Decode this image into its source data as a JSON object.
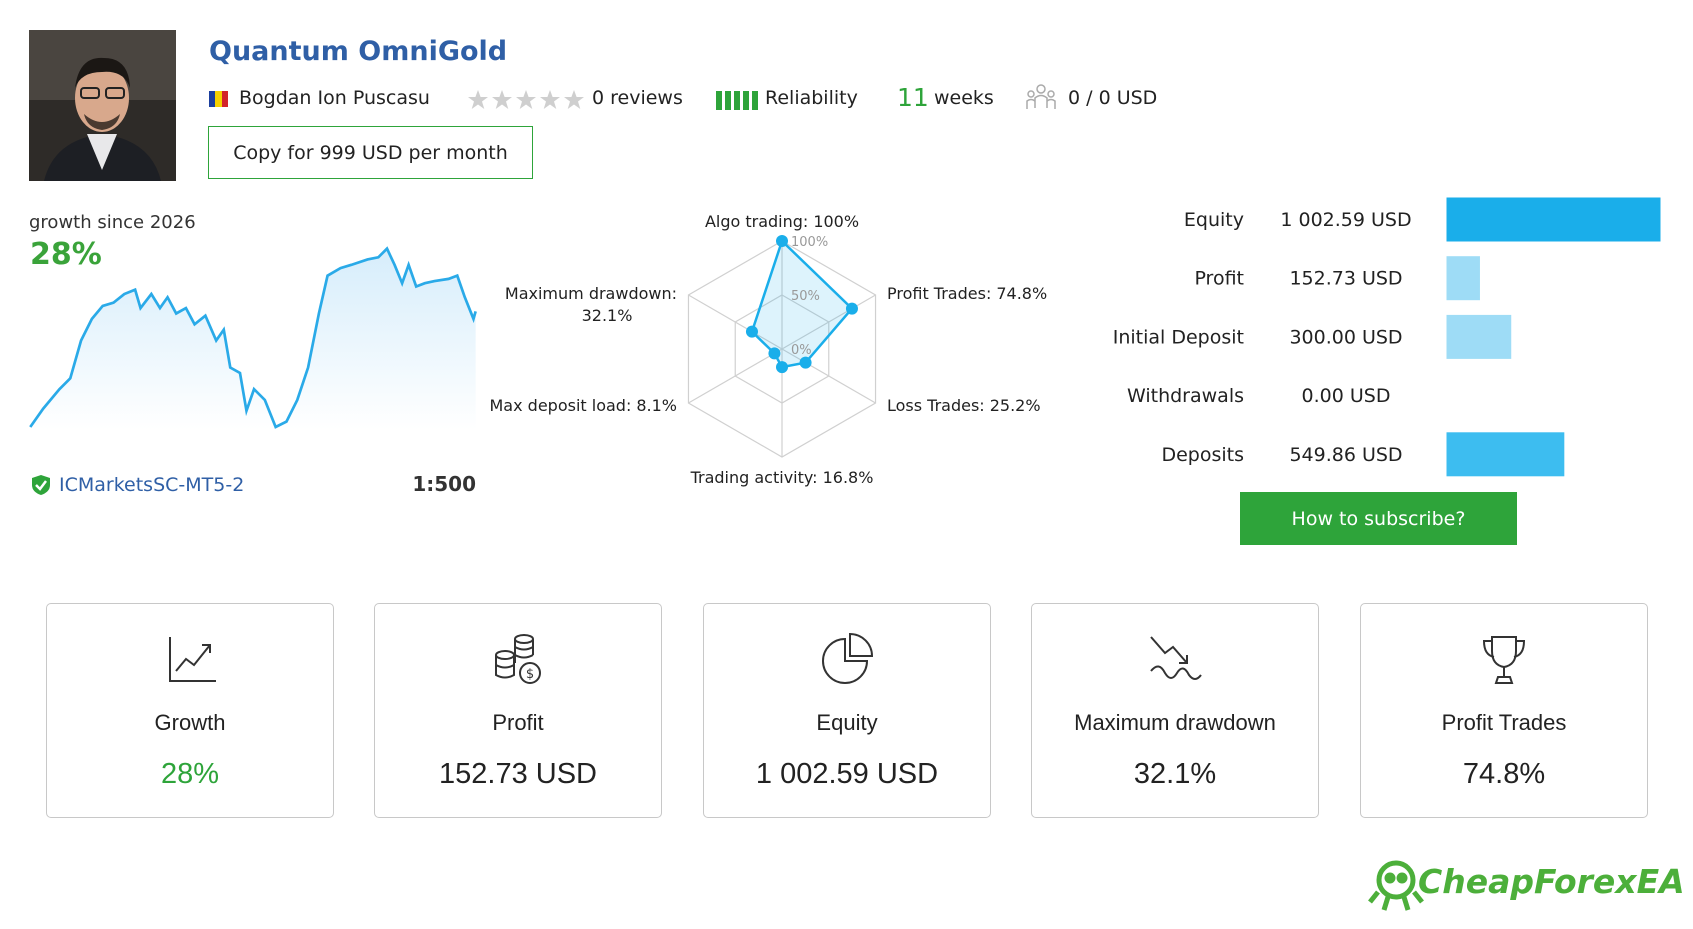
{
  "header": {
    "title": "Quantum OmniGold",
    "author": "Bogdan Ion Puscasu",
    "reviews": "0 reviews",
    "reliability": "Reliability",
    "weeks_count": "11",
    "weeks_unit": "weeks",
    "subscribers": "0 / 0 USD",
    "copy_button": "Copy for 999 USD per month"
  },
  "growth": {
    "caption": "growth since 2026",
    "value": "28%",
    "broker": "ICMarketsSC-MT5-2",
    "leverage": "1:500"
  },
  "radar": {
    "rlim": [
      0,
      100
    ],
    "ticks": [
      {
        "value": 100,
        "label": "100%"
      },
      {
        "value": 50,
        "label": "50%"
      },
      {
        "value": 0,
        "label": "0%"
      }
    ],
    "color": "#1aaeea",
    "axes": [
      {
        "name": "Algo trading:",
        "value": 100,
        "value_label": "100%"
      },
      {
        "name": "Profit Trades:",
        "value": 74.8,
        "value_label": "74.8%"
      },
      {
        "name": "Loss Trades:",
        "value": 25.2,
        "value_label": "25.2%"
      },
      {
        "name": "Trading activity:",
        "value": 16.8,
        "value_label": "16.8%"
      },
      {
        "name": "Max deposit load:",
        "value": 8.1,
        "value_label": "8.1%"
      },
      {
        "name": "Maximum drawdown:",
        "value": 32.1,
        "value_label": "32.1%"
      }
    ]
  },
  "account": {
    "rows": [
      {
        "label": "Equity",
        "value": 1002.59,
        "value_label": "1 002.59 USD",
        "color": "#1aaeea"
      },
      {
        "label": "Profit",
        "value": 152.73,
        "value_label": "152.73 USD",
        "color": "#9edcf6"
      },
      {
        "label": "Initial Deposit",
        "value": 300.0,
        "value_label": "300.00 USD",
        "color": "#9edcf6"
      },
      {
        "label": "Withdrawals",
        "value": 0.0,
        "value_label": "0.00 USD",
        "color": "#9edcf6"
      },
      {
        "label": "Deposits",
        "value": 549.86,
        "value_label": "549.86 USD",
        "color": "#3dbdf0"
      }
    ],
    "subscribe_button": "How to subscribe?"
  },
  "cards": [
    {
      "title": "Growth",
      "value": "28%"
    },
    {
      "title": "Profit",
      "value": "152.73 USD"
    },
    {
      "title": "Equity",
      "value": "1 002.59 USD"
    },
    {
      "title": "Maximum drawdown",
      "value": "32.1%"
    },
    {
      "title": "Profit Trades",
      "value": "74.8%"
    }
  ],
  "logo": "CheapForexEA"
}
